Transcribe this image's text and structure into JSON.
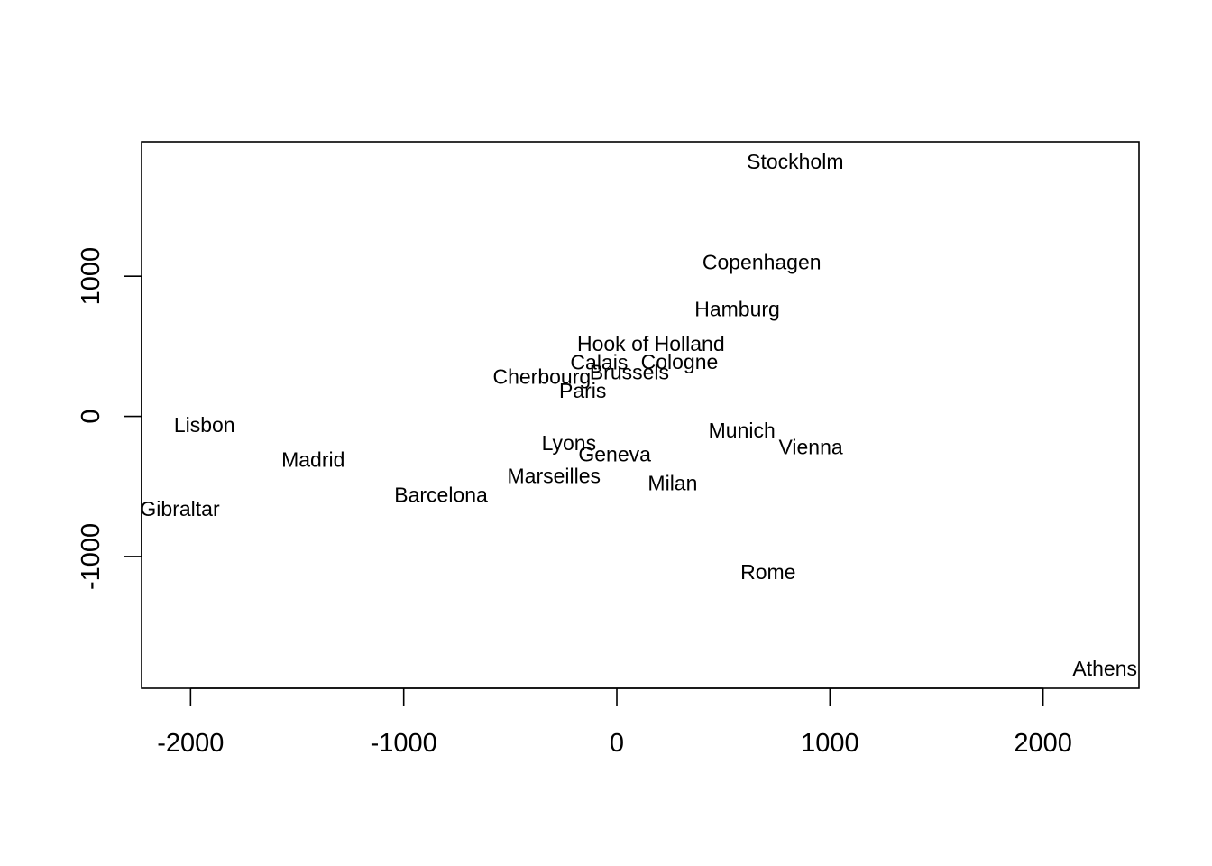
{
  "chart_data": {
    "type": "scatter",
    "title": "",
    "xlabel": "",
    "ylabel": "",
    "xlim": [
      -2230,
      2450
    ],
    "ylim": [
      -1940,
      1960
    ],
    "x_ticks": [
      -2000,
      -1000,
      0,
      1000,
      2000
    ],
    "x_tick_labels": [
      "-2000",
      "-1000",
      "0",
      "1000",
      "2000"
    ],
    "y_ticks": [
      -1000,
      0,
      1000
    ],
    "y_tick_labels": [
      "-1000",
      "0",
      "1000"
    ],
    "grid": false,
    "marker": "text-label",
    "points": [
      {
        "label": "Athens",
        "x": 2290,
        "y": -1800
      },
      {
        "label": "Barcelona",
        "x": -825,
        "y": -560
      },
      {
        "label": "Brussels",
        "x": 59,
        "y": 316
      },
      {
        "label": "Calais",
        "x": -83,
        "y": 388
      },
      {
        "label": "Cherbourg",
        "x": -352,
        "y": 282
      },
      {
        "label": "Cologne",
        "x": 294,
        "y": 390
      },
      {
        "label": "Copenhagen",
        "x": 680,
        "y": 1100
      },
      {
        "label": "Geneva",
        "x": -10,
        "y": -270
      },
      {
        "label": "Gibraltar",
        "x": -2050,
        "y": -660
      },
      {
        "label": "Hamburg",
        "x": 565,
        "y": 766
      },
      {
        "label": "Hook of Holland",
        "x": 160,
        "y": 520
      },
      {
        "label": "Lisbon",
        "x": -1935,
        "y": -60
      },
      {
        "label": "Lyons",
        "x": -225,
        "y": -190
      },
      {
        "label": "Madrid",
        "x": -1425,
        "y": -310
      },
      {
        "label": "Marseilles",
        "x": -295,
        "y": -425
      },
      {
        "label": "Milan",
        "x": 262,
        "y": -475
      },
      {
        "label": "Munich",
        "x": 587,
        "y": -100
      },
      {
        "label": "Paris",
        "x": -160,
        "y": 185
      },
      {
        "label": "Rome",
        "x": 710,
        "y": -1110
      },
      {
        "label": "Stockholm",
        "x": 837,
        "y": 1820
      },
      {
        "label": "Vienna",
        "x": 910,
        "y": -220
      }
    ]
  }
}
